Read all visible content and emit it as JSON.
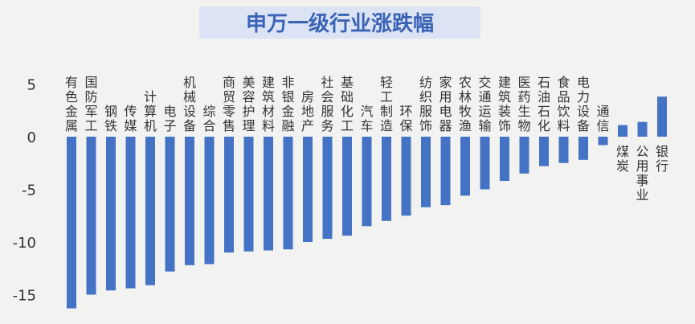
{
  "chart_data": {
    "type": "bar",
    "title": "申万一级行业涨跌幅",
    "xlabel": "",
    "ylabel": "",
    "ylim": [
      -16.5,
      6
    ],
    "yticks": [
      5,
      0,
      -5,
      -10,
      -15
    ],
    "ytick_labels": [
      "5",
      "0",
      "-5",
      "-10",
      "-15"
    ],
    "grid": false,
    "colors": {
      "bar": "#4472c4",
      "title_bg": "#dbe3f5",
      "title_text": "#3b63b4",
      "axis_text": "#333333"
    },
    "categories": [
      "有色金属",
      "国防军工",
      "钢铁",
      "传媒",
      "计算机",
      "电子",
      "机械设备",
      "综合",
      "商贸零售",
      "美容护理",
      "建筑材料",
      "非银金融",
      "房地产",
      "社会服务",
      "基础化工",
      "汽车",
      "轻工制造",
      "环保",
      "纺织服饰",
      "家用电器",
      "农林牧渔",
      "交通运输",
      "建筑装饰",
      "医药生物",
      "石油石化",
      "食品饮料",
      "电力设备",
      "通信",
      "煤炭",
      "公用事业",
      "银行"
    ],
    "values": [
      -16.3,
      -15.0,
      -14.6,
      -14.4,
      -14.1,
      -12.8,
      -12.2,
      -12.1,
      -11.0,
      -10.9,
      -10.8,
      -10.7,
      -10.0,
      -9.7,
      -9.4,
      -8.5,
      -8.0,
      -7.5,
      -6.7,
      -6.5,
      -5.6,
      -5.0,
      -4.2,
      -3.5,
      -2.8,
      -2.5,
      -2.2,
      -0.8,
      1.1,
      1.4,
      3.8
    ]
  }
}
